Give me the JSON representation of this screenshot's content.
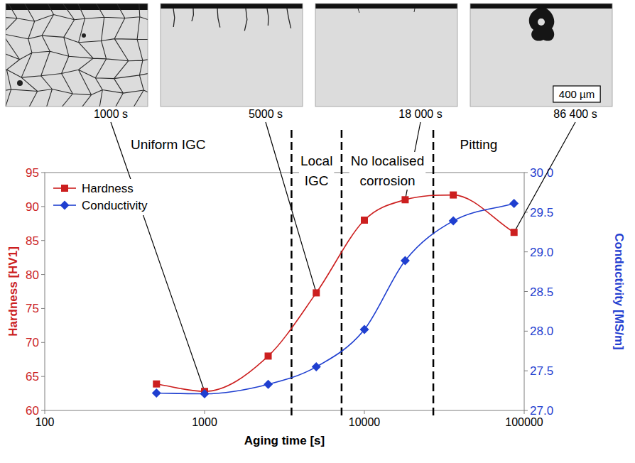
{
  "chart_data": {
    "type": "line",
    "log": "x",
    "x_label": "Aging time [s]",
    "y_label": "Hardness [HV1]",
    "y2_label": "Conductivity [MS/m]",
    "xlim": [
      100,
      100000
    ],
    "xticks": [
      100,
      1000,
      10000,
      100000
    ],
    "ylim": [
      60,
      95
    ],
    "yticks": [
      60,
      65,
      70,
      75,
      80,
      85,
      90,
      95
    ],
    "y2lim": [
      27,
      30
    ],
    "y2ticks": [
      {
        "value": 27,
        "label": "27.0"
      },
      {
        "value": 27.5,
        "label": "27.5"
      },
      {
        "value": 28,
        "label": "28.0"
      },
      {
        "value": 28.5,
        "label": "28.5"
      },
      {
        "value": 29,
        "label": "29.0"
      },
      {
        "value": 29.5,
        "label": "29.5"
      },
      {
        "value": 30,
        "label": "30.0"
      }
    ],
    "legend": "upper left",
    "x": [
      500,
      1000,
      2500,
      5000,
      10000,
      18000,
      36000,
      86400
    ],
    "series": [
      {
        "name": "Hardness",
        "color": "#cc1f1f",
        "marker": "square",
        "values": [
          63.9,
          62.8,
          68.0,
          77.3,
          88.0,
          91.0,
          91.7,
          86.2
        ]
      },
      {
        "name": "Conductivity",
        "color": "#1f3fd0",
        "marker": "diamond",
        "axis": "y2",
        "values": [
          27.22,
          27.21,
          27.33,
          27.55,
          28.02,
          28.89,
          29.39,
          29.61
        ]
      }
    ],
    "region_bounds": [
      3500,
      7200,
      27000
    ],
    "region_labels": [
      "Uniform IGC",
      "Local IGC",
      "No localised corrosion",
      "Pitting"
    ],
    "micrographs": [
      {
        "label": "1000 s",
        "x": 1000
      },
      {
        "label": "5000 s",
        "x": 5000
      },
      {
        "label": "18 000 s",
        "x": 18000
      },
      {
        "label": "86 400 s",
        "x": 86400
      }
    ],
    "scale_bar": "400 µm"
  }
}
